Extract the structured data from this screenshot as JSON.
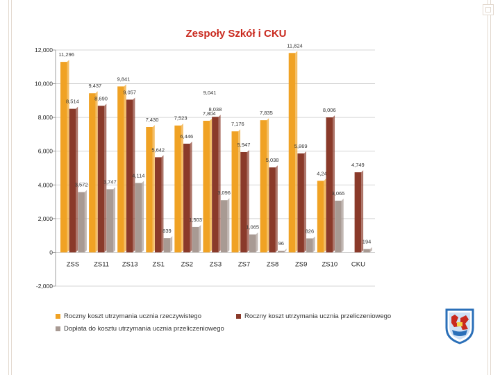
{
  "colors": {
    "series1": "#f0a224",
    "series2": "#8a3a2a",
    "series3": "#a89a93",
    "title": "#c9291e"
  },
  "chart_data": {
    "type": "bar",
    "title": "Zespoły Szkół i CKU",
    "categories": [
      "ZSS",
      "ZS11",
      "ZS13",
      "ZS1",
      "ZS2",
      "ZS3",
      "ZS7",
      "ZS8",
      "ZS9",
      "ZS10",
      "CKU"
    ],
    "ylim": [
      -2000,
      12000
    ],
    "yticks": [
      -2000,
      0,
      2000,
      4000,
      6000,
      8000,
      10000,
      12000
    ],
    "ytick_labels": [
      "-2,000",
      "0",
      "2,000",
      "4,000",
      "6,000",
      "8,000",
      "10,000",
      "12,000"
    ],
    "grid": true,
    "series": [
      {
        "name": "Roczny koszt utrzymania ucznia rzeczywistego",
        "values": [
          11296,
          9437,
          9841,
          7430,
          7523,
          7804,
          7176,
          7835,
          11824,
          4244,
          null
        ],
        "labels": [
          "11,296",
          "9,437",
          "9,841",
          "7,430",
          "7,523",
          "7,804",
          "7,176",
          "7,835",
          "11,824",
          "4,244",
          ""
        ]
      },
      {
        "name": "Roczny koszt utrzymania ucznia przeliczeniowego",
        "values": [
          8514,
          8690,
          9057,
          5642,
          6446,
          8038,
          5947,
          5038,
          5869,
          8006,
          4749
        ],
        "labels": [
          "8,514",
          "8,690",
          "9,057",
          "5,642",
          "6,446",
          "8,038",
          "5,947",
          "5,038",
          "5,869",
          "8,006",
          "4,749"
        ]
      },
      {
        "name": "Dopłata do kosztu utrzymania ucznia przeliczeniowego",
        "values": [
          3572,
          3747,
          4114,
          839,
          1503,
          3096,
          1065,
          96,
          826,
          3065,
          194
        ],
        "labels": [
          "3,572",
          "3,747",
          "4,114",
          "839",
          "1,503",
          "3,096",
          "1,065",
          "96",
          "826",
          "3,065",
          "194"
        ]
      }
    ],
    "extra_label": "9,041"
  }
}
